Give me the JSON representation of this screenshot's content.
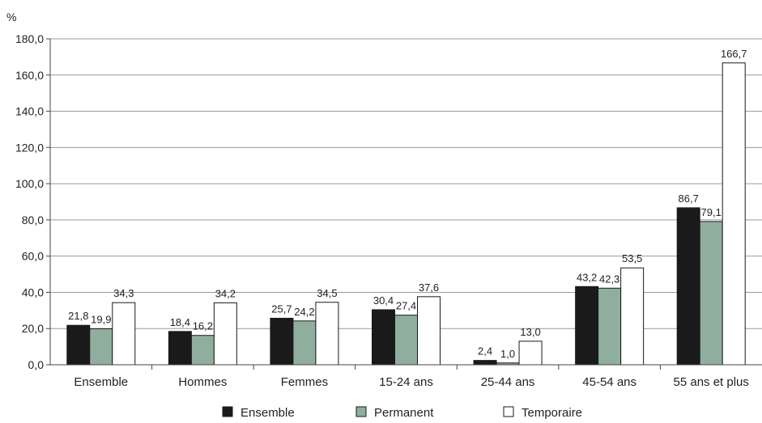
{
  "chart_data": {
    "type": "bar",
    "title": "",
    "xlabel": "",
    "ylabel": "%",
    "ylim": [
      0,
      180
    ],
    "yticks": [
      0,
      20,
      40,
      60,
      80,
      100,
      120,
      140,
      160,
      180
    ],
    "ytick_labels": [
      "0,0",
      "20,0",
      "40,0",
      "60,0",
      "80,0",
      "100,0",
      "120,0",
      "140,0",
      "160,0",
      "180,0"
    ],
    "grid": true,
    "legend_position": "bottom",
    "categories": [
      "Ensemble",
      "Hommes",
      "Femmes",
      "15-24 ans",
      "25-44 ans",
      "45-54 ans",
      "55 ans et plus"
    ],
    "series": [
      {
        "name": "Ensemble",
        "color": "#1a1a1a",
        "values": [
          21.8,
          18.4,
          25.7,
          30.4,
          2.4,
          43.2,
          86.7
        ],
        "labels": [
          "21,8",
          "18,4",
          "25,7",
          "30,4",
          "2,4",
          "43,2",
          "86,7"
        ]
      },
      {
        "name": "Permanent",
        "color": "#8fae9e",
        "values": [
          19.9,
          16.2,
          24.2,
          27.4,
          1.0,
          42.3,
          79.1
        ],
        "labels": [
          "19,9",
          "16,2",
          "24,2",
          "27,4",
          "1,0",
          "42,3",
          "79,1"
        ]
      },
      {
        "name": "Temporaire",
        "color": "#ffffff",
        "values": [
          34.3,
          34.2,
          34.5,
          37.6,
          13.0,
          53.5,
          166.7
        ],
        "labels": [
          "34,3",
          "34,2",
          "34,5",
          "37,6",
          "13,0",
          "53,5",
          "166,7"
        ]
      }
    ]
  }
}
